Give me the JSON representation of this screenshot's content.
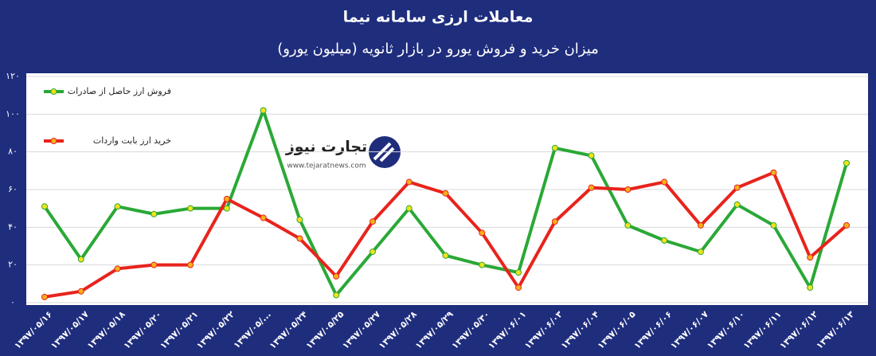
{
  "chart_data": {
    "type": "line",
    "title": "معاملات ارزی سامانه نیما",
    "subtitle": "میزان خرید و فروش یورو در بازار ثانویه (میلیون یورو)",
    "categories": [
      "۱۳۹۷/۰۵/۱۶",
      "۱۳۹۷/۰۵/۱۷",
      "۱۳۹۷/۰۵/۱۸",
      "۱۳۹۷/۰۵/۲۰",
      "۱۳۹۷/۰۵/۲۱",
      "۱۳۹۷/۰۵/۲۲",
      "۱۳۹۷/۰۵/...",
      "۱۳۹۷/۰۵/۲۴",
      "۱۳۹۷/۰۵/۲۵",
      "۱۳۹۷/۰۵/۲۷",
      "۱۳۹۷/۰۵/۲۸",
      "۱۳۹۷/۰۵/۲۹",
      "۱۳۹۷/۰۵/۳۰",
      "۱۳۹۷/۰۶/۰۱",
      "۱۳۹۷/۰۶/۰۳",
      "۱۳۹۷/۰۶/۰۴",
      "۱۳۹۷/۰۶/۰۵",
      "۱۳۹۷/۰۶/۰۶",
      "۱۳۹۷/۰۶/۰۷",
      "۱۳۹۷/۰۶/۱۰",
      "۱۳۹۷/۰۶/۱۱",
      "۱۳۹۷/۰۶/۱۲",
      "۱۳۹۷/۰۶/۱۳"
    ],
    "series": [
      {
        "name": "فروش ارز حاصل از صادرات",
        "color": "#2aa836",
        "marker_color": "#f4e21b",
        "values": [
          51,
          23,
          51,
          47,
          50,
          50,
          102,
          44,
          4,
          27,
          50,
          25,
          20,
          16,
          82,
          78,
          41,
          33,
          27,
          52,
          41,
          8,
          74
        ]
      },
      {
        "name": "خرید ارز بابت واردات",
        "color": "#e8231c",
        "marker_color": "#f6b01a",
        "values": [
          3,
          6,
          18,
          20,
          20,
          55,
          45,
          34,
          14,
          43,
          64,
          58,
          37,
          8,
          43,
          61,
          60,
          64,
          41,
          61,
          69,
          24,
          41
        ]
      }
    ],
    "ylim": [
      0,
      120
    ],
    "yticks": [
      {
        "value": 0,
        "label": "۰"
      },
      {
        "value": 20,
        "label": "۲۰"
      },
      {
        "value": 40,
        "label": "۴۰"
      },
      {
        "value": 60,
        "label": "۶۰"
      },
      {
        "value": 80,
        "label": "۸۰"
      },
      {
        "value": 100,
        "label": "۱۰۰"
      },
      {
        "value": 120,
        "label": "۱۲۰"
      }
    ],
    "grid": true
  },
  "logo": {
    "name": "تجارت نیوز",
    "url": "www.tejaratnews.com"
  }
}
